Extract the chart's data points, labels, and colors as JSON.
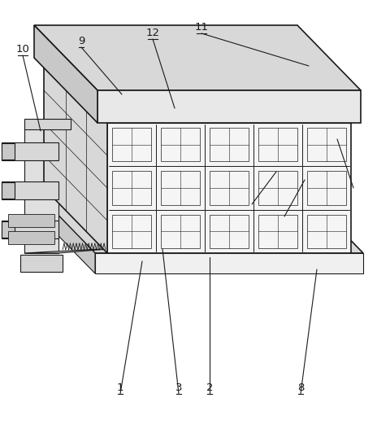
{
  "figsize": [
    4.8,
    5.21
  ],
  "dpi": 100,
  "bg_color": "#ffffff",
  "lc": "#1a1a1a",
  "lw": 0.8,
  "lw2": 1.2,
  "lw3": 1.5,
  "fc_top": "#d8d8d8",
  "fc_front": "#f0f0f0",
  "fc_left": "#c8c8c8",
  "fc_white": "#fafafa",
  "fc_gray1": "#e8e8e8",
  "fc_gray2": "#d0d0d0",
  "fc_gray3": "#b8b8b8"
}
